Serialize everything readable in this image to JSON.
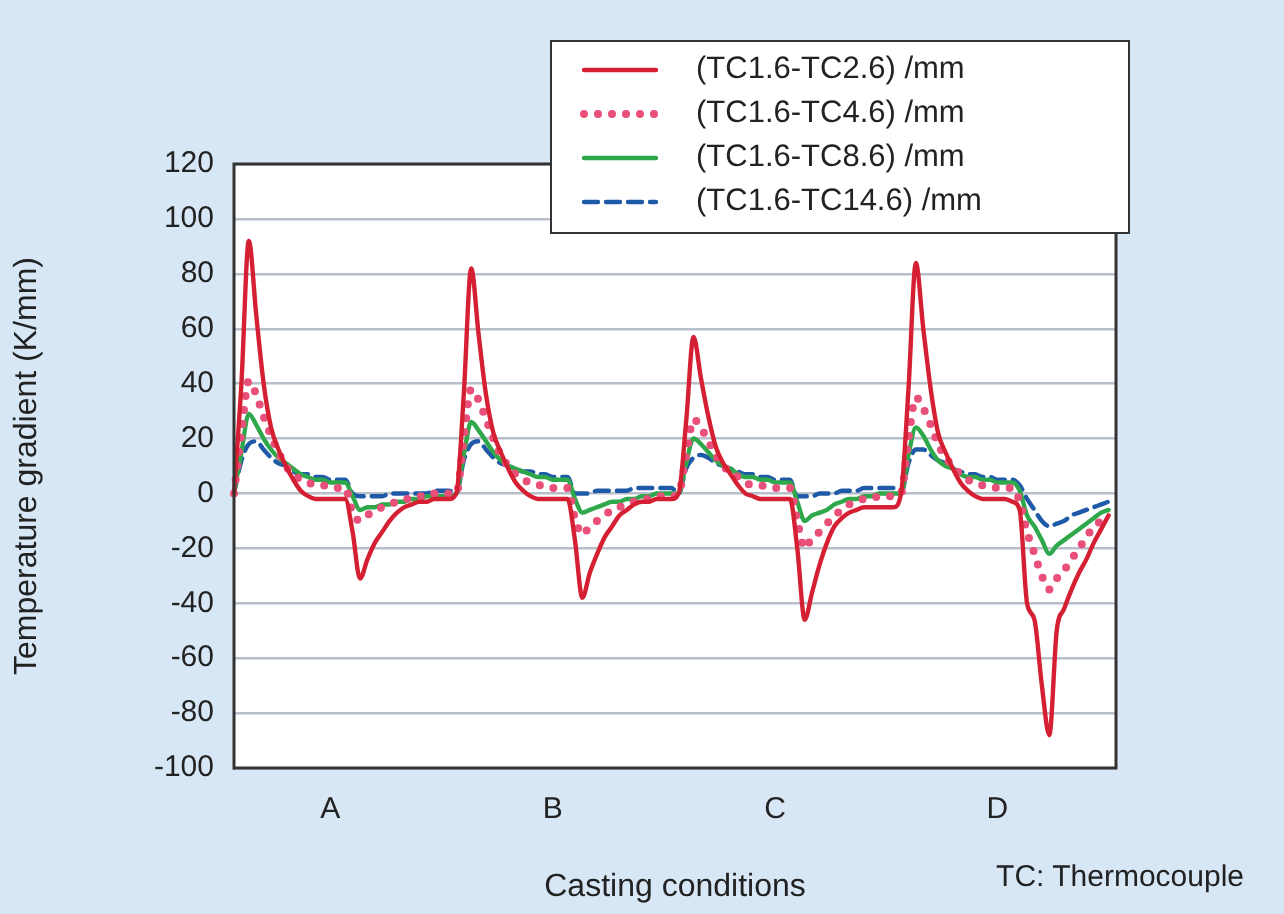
{
  "chart_data": {
    "type": "line",
    "xlabel": "Casting conditions",
    "ylabel": "Temperature gradient (K/mm)",
    "annotations": [
      "TC: Thermocouple"
    ],
    "categories": [
      null,
      null,
      null,
      null,
      null,
      null,
      null,
      null,
      null,
      null,
      null,
      null,
      null,
      "A",
      null,
      null,
      null,
      null,
      null,
      null,
      null,
      null,
      null,
      null,
      null,
      null,
      null,
      null,
      null,
      null,
      null,
      null,
      null,
      null,
      null,
      null,
      null,
      null,
      null,
      null,
      null,
      null,
      null,
      "B",
      null,
      null,
      null,
      null,
      null,
      null,
      null,
      null,
      null,
      null,
      null,
      null,
      null,
      null,
      null,
      null,
      null,
      null,
      null,
      null,
      null,
      null,
      null,
      null,
      null,
      null,
      null,
      null,
      null,
      "C",
      null,
      null,
      null,
      null,
      null,
      null,
      null,
      null,
      null,
      null,
      null,
      null,
      null,
      null,
      null,
      null,
      null,
      null,
      null,
      null,
      null,
      null,
      null,
      null,
      null,
      null,
      null,
      null,
      null,
      "D",
      null,
      null,
      null,
      null,
      null,
      null,
      null,
      null,
      null,
      null,
      null,
      null,
      null,
      null,
      null,
      null
    ],
    "ylim": [
      -100,
      120
    ],
    "yticks": [
      -100,
      -80,
      -60,
      -40,
      -20,
      0,
      20,
      40,
      60,
      80,
      100,
      120
    ],
    "grid": "y",
    "legend": "top right",
    "marker": "none",
    "series": [
      {
        "name": "(TC1.6-TC2.6) /mm",
        "color": "#d42032",
        "line_style": "solid",
        "values": [
          0,
          40,
          92,
          65,
          40,
          24,
          16,
          10,
          5,
          1,
          -1,
          -2,
          -2,
          -2,
          -2,
          -2,
          -14,
          -31,
          -24,
          -18,
          -14,
          -10,
          -7,
          -5,
          -4,
          -3,
          -3,
          -2,
          -2,
          -2,
          0,
          36,
          82,
          58,
          36,
          22,
          15,
          9,
          4,
          1,
          -1,
          -2,
          -2,
          -2,
          -2,
          -2,
          -17,
          -38,
          -29,
          -22,
          -16,
          -12,
          -8,
          -6,
          -4,
          -3,
          -3,
          -2,
          -2,
          -2,
          0,
          26,
          57,
          42,
          28,
          17,
          11,
          7,
          3,
          0,
          -1,
          -2,
          -2,
          -2,
          -2,
          -2,
          -20,
          -46,
          -36,
          -26,
          -18,
          -12,
          -9,
          -7,
          -6,
          -5,
          -5,
          -5,
          -5,
          -5,
          0,
          38,
          84,
          60,
          38,
          22,
          15,
          9,
          4,
          1,
          -1,
          -2,
          -2,
          -2,
          -2,
          -3,
          -6,
          -40,
          -46,
          -70,
          -88,
          -50,
          -42,
          -35,
          -29,
          -24,
          -18,
          -13,
          -8,
          null
        ]
      },
      {
        "name": "(TC1.6-TC4.6) /mm",
        "color": "#e8507a",
        "line_style": "dotted",
        "values": [
          0,
          22,
          41,
          36,
          28,
          21,
          15,
          10,
          7,
          5,
          4,
          3,
          3,
          2,
          2,
          2,
          -7,
          -10,
          -8,
          -6,
          -5,
          -4,
          -3,
          -2,
          -2,
          -1,
          -1,
          0,
          0,
          0,
          0,
          20,
          38,
          34,
          27,
          20,
          14,
          10,
          7,
          5,
          4,
          3,
          3,
          2,
          2,
          2,
          -9,
          -15,
          -12,
          -10,
          -8,
          -6,
          -5,
          -4,
          -3,
          -2,
          -2,
          -1,
          -1,
          -1,
          0,
          14,
          27,
          24,
          19,
          14,
          10,
          8,
          6,
          4,
          3,
          3,
          2,
          2,
          2,
          2,
          -10,
          -20,
          -16,
          -14,
          -11,
          -8,
          -6,
          -4,
          -3,
          -2,
          -2,
          -1,
          -1,
          -1,
          0,
          20,
          35,
          31,
          25,
          18,
          13,
          10,
          7,
          5,
          4,
          3,
          3,
          2,
          2,
          2,
          -3,
          -14,
          -22,
          -30,
          -35,
          -31,
          -28,
          -24,
          -20,
          -16,
          -12,
          -10,
          -8,
          null
        ]
      },
      {
        "name": "(TC1.6-TC8.6) /mm",
        "color": "#2ea84a",
        "line_style": "solid",
        "values": [
          0,
          15,
          29,
          25,
          20,
          16,
          13,
          11,
          9,
          7,
          6,
          5,
          5,
          4,
          4,
          4,
          -1,
          -6,
          -5,
          -5,
          -4,
          -4,
          -3,
          -3,
          -2,
          -2,
          -1,
          -1,
          -1,
          -1,
          0,
          14,
          26,
          23,
          19,
          15,
          12,
          10,
          9,
          8,
          7,
          6,
          6,
          5,
          5,
          5,
          -2,
          -7,
          -6,
          -5,
          -4,
          -3,
          -3,
          -2,
          -2,
          -1,
          -1,
          0,
          0,
          0,
          0,
          11,
          20,
          18,
          15,
          12,
          10,
          9,
          7,
          6,
          6,
          5,
          5,
          4,
          4,
          4,
          -3,
          -10,
          -8,
          -7,
          -6,
          -4,
          -3,
          -2,
          -2,
          -1,
          -1,
          0,
          0,
          0,
          0,
          14,
          24,
          21,
          16,
          12,
          10,
          9,
          7,
          6,
          6,
          5,
          5,
          4,
          4,
          4,
          1,
          -8,
          -12,
          -17,
          -22,
          -19,
          -17,
          -15,
          -13,
          -11,
          -9,
          -7,
          -6,
          null
        ]
      },
      {
        "name": "(TC1.6-TC14.6) /mm",
        "color": "#1f5aa8",
        "line_style": "dashed",
        "values": [
          0,
          12,
          18,
          19,
          16,
          13,
          11,
          10,
          8,
          7,
          7,
          6,
          6,
          5,
          5,
          5,
          0,
          -1,
          -1,
          -1,
          -1,
          0,
          0,
          0,
          0,
          0,
          0,
          1,
          1,
          1,
          0,
          12,
          18,
          19,
          16,
          13,
          11,
          10,
          9,
          8,
          8,
          7,
          7,
          6,
          6,
          6,
          0,
          0,
          0,
          1,
          1,
          1,
          1,
          1,
          2,
          2,
          2,
          2,
          2,
          2,
          0,
          9,
          13,
          14,
          13,
          11,
          10,
          9,
          8,
          7,
          7,
          6,
          6,
          5,
          5,
          5,
          -1,
          -1,
          -1,
          0,
          0,
          0,
          1,
          1,
          1,
          2,
          2,
          2,
          2,
          2,
          0,
          11,
          16,
          16,
          14,
          12,
          11,
          9,
          8,
          7,
          7,
          6,
          6,
          5,
          5,
          5,
          3,
          -2,
          -6,
          -10,
          -12,
          -11,
          -10,
          -8,
          -7,
          -6,
          -5,
          -4,
          -3,
          null
        ]
      }
    ]
  }
}
